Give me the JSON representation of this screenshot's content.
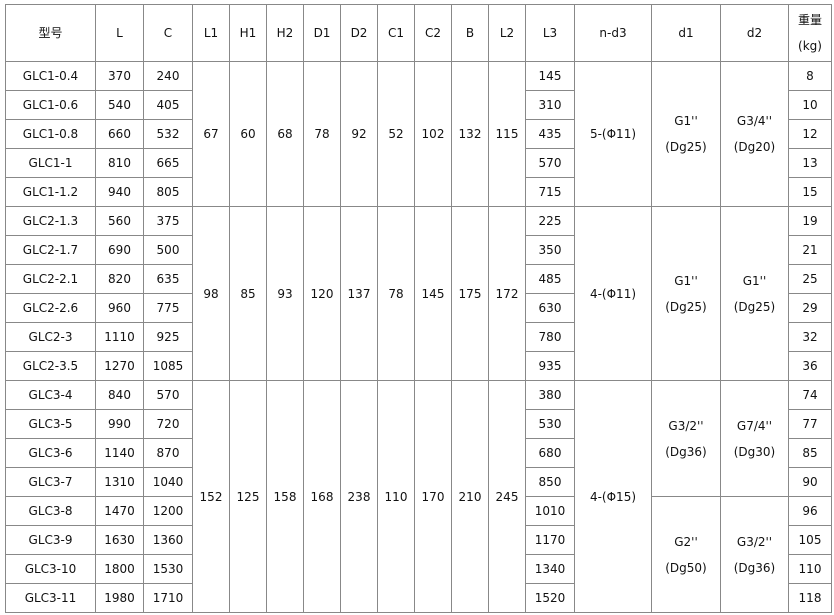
{
  "headers": [
    "型号",
    "L",
    "C",
    "L1",
    "H1",
    "H2",
    "D1",
    "D2",
    "C1",
    "C2",
    "B",
    "L2",
    "L3",
    "n-d3",
    "d1",
    "d2",
    [
      "重量",
      "(kg)"
    ]
  ],
  "groups": [
    {
      "common": {
        "L1": "67",
        "H1": "60",
        "H2": "68",
        "D1": "78",
        "D2": "92",
        "C1": "52",
        "C2": "102",
        "B": "132",
        "L2": "115",
        "n_d3": "5-(Φ11)"
      },
      "d_blocks": [
        {
          "rows": 5,
          "d1": [
            "G1''",
            "(Dg25)"
          ],
          "d2": [
            "G3/4''",
            "(Dg20)"
          ]
        }
      ],
      "rows": [
        {
          "model": "GLC1-0.4",
          "L": "370",
          "C": "240",
          "L3": "145",
          "weight": "8"
        },
        {
          "model": "GLC1-0.6",
          "L": "540",
          "C": "405",
          "L3": "310",
          "weight": "10"
        },
        {
          "model": "GLC1-0.8",
          "L": "660",
          "C": "532",
          "L3": "435",
          "weight": "12"
        },
        {
          "model": "GLC1-1",
          "L": "810",
          "C": "665",
          "L3": "570",
          "weight": "13"
        },
        {
          "model": "GLC1-1.2",
          "L": "940",
          "C": "805",
          "L3": "715",
          "weight": "15"
        }
      ]
    },
    {
      "common": {
        "L1": "98",
        "H1": "85",
        "H2": "93",
        "D1": "120",
        "D2": "137",
        "C1": "78",
        "C2": "145",
        "B": "175",
        "L2": "172",
        "n_d3": "4-(Φ11)"
      },
      "d_blocks": [
        {
          "rows": 6,
          "d1": [
            "G1''",
            "(Dg25)"
          ],
          "d2": [
            "G1''",
            "(Dg25)"
          ]
        }
      ],
      "rows": [
        {
          "model": "GLC2-1.3",
          "L": "560",
          "C": "375",
          "L3": "225",
          "weight": "19"
        },
        {
          "model": "GLC2-1.7",
          "L": "690",
          "C": "500",
          "L3": "350",
          "weight": "21"
        },
        {
          "model": "GLC2-2.1",
          "L": "820",
          "C": "635",
          "L3": "485",
          "weight": "25"
        },
        {
          "model": "GLC2-2.6",
          "L": "960",
          "C": "775",
          "L3": "630",
          "weight": "29"
        },
        {
          "model": "GLC2-3",
          "L": "1110",
          "C": "925",
          "L3": "780",
          "weight": "32"
        },
        {
          "model": "GLC2-3.5",
          "L": "1270",
          "C": "1085",
          "L3": "935",
          "weight": "36"
        }
      ]
    },
    {
      "common": {
        "L1": "152",
        "H1": "125",
        "H2": "158",
        "D1": "168",
        "D2": "238",
        "C1": "110",
        "C2": "170",
        "B": "210",
        "L2": "245",
        "n_d3": "4-(Φ15)"
      },
      "d_blocks": [
        {
          "rows": 4,
          "d1": [
            "G3/2''",
            "(Dg36)"
          ],
          "d2": [
            "G7/4''",
            "(Dg30)"
          ]
        },
        {
          "rows": 4,
          "d1": [
            "G2''",
            "(Dg50)"
          ],
          "d2": [
            "G3/2''",
            "(Dg36)"
          ]
        }
      ],
      "rows": [
        {
          "model": "GLC3-4",
          "L": "840",
          "C": "570",
          "L3": "380",
          "weight": "74"
        },
        {
          "model": "GLC3-5",
          "L": "990",
          "C": "720",
          "L3": "530",
          "weight": "77"
        },
        {
          "model": "GLC3-6",
          "L": "1140",
          "C": "870",
          "L3": "680",
          "weight": "85"
        },
        {
          "model": "GLC3-7",
          "L": "1310",
          "C": "1040",
          "L3": "850",
          "weight": "90"
        },
        {
          "model": "GLC3-8",
          "L": "1470",
          "C": "1200",
          "L3": "1010",
          "weight": "96"
        },
        {
          "model": "GLC3-9",
          "L": "1630",
          "C": "1360",
          "L3": "1170",
          "weight": "105"
        },
        {
          "model": "GLC3-10",
          "L": "1800",
          "C": "1530",
          "L3": "1340",
          "weight": "110"
        },
        {
          "model": "GLC3-11",
          "L": "1980",
          "C": "1710",
          "L3": "1520",
          "weight": "118"
        }
      ]
    }
  ]
}
